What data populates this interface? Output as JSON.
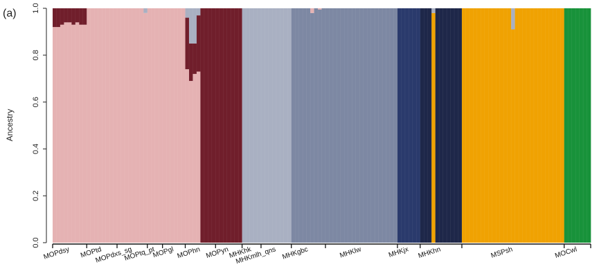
{
  "panel_label": "(a)",
  "colors": {
    "pink": "#e5b2b3",
    "maroon": "#701e2b",
    "lightgray": "#a9b0c2",
    "slate": "#7d88a3",
    "royal": "#2a3a6c",
    "navy": "#1e2749",
    "orange": "#f0a202",
    "green": "#18923a"
  },
  "chart_data": {
    "type": "bar",
    "stacked": true,
    "ylabel": "Ancestry",
    "ylim": [
      0,
      1
    ],
    "yticks": [
      "0.0",
      "0.2",
      "0.4",
      "0.6",
      "0.8",
      "1.0"
    ],
    "populations": [
      {
        "name": "MOPdsy",
        "n": 9,
        "base": "pink"
      },
      {
        "name": "MOPtd",
        "n": 8,
        "base": "pink"
      },
      {
        "name": "MOPdxs_sg",
        "n": 8,
        "base": "pink"
      },
      {
        "name": "MOPtq_pt",
        "n": 4,
        "base": "pink"
      },
      {
        "name": "MOPgl",
        "n": 6,
        "base": "pink"
      },
      {
        "name": "MOPhn",
        "n": 8,
        "base": "maroon"
      },
      {
        "name": "MOPyn",
        "n": 7,
        "base": "maroon"
      },
      {
        "name": "MHKhk",
        "n": 5,
        "base": "lightgray"
      },
      {
        "name": "MHKmlh_qns",
        "n": 8,
        "base": "lightgray"
      },
      {
        "name": "MHKgbc",
        "n": 9,
        "base": "slate"
      },
      {
        "name": "MHKlw",
        "n": 19,
        "base": "slate"
      },
      {
        "name": "MHKjx",
        "n": 6,
        "base": "royal"
      },
      {
        "name": "MHKhn",
        "n": 11,
        "base": "navy"
      },
      {
        "name": "MSPsh",
        "n": 27,
        "base": "orange"
      },
      {
        "name": "MOCwl",
        "n": 7,
        "base": "green"
      }
    ],
    "admixture": [
      {
        "index": 0,
        "components": [
          [
            "pink",
            0.92
          ],
          [
            "maroon",
            0.08
          ]
        ]
      },
      {
        "index": 1,
        "components": [
          [
            "pink",
            0.92
          ],
          [
            "maroon",
            0.08
          ]
        ]
      },
      {
        "index": 2,
        "components": [
          [
            "pink",
            0.93
          ],
          [
            "maroon",
            0.07
          ]
        ]
      },
      {
        "index": 3,
        "components": [
          [
            "pink",
            0.94
          ],
          [
            "maroon",
            0.06
          ]
        ]
      },
      {
        "index": 4,
        "components": [
          [
            "pink",
            0.94
          ],
          [
            "maroon",
            0.06
          ]
        ]
      },
      {
        "index": 5,
        "components": [
          [
            "pink",
            0.93
          ],
          [
            "maroon",
            0.07
          ]
        ]
      },
      {
        "index": 6,
        "components": [
          [
            "pink",
            0.94
          ],
          [
            "maroon",
            0.06
          ]
        ]
      },
      {
        "index": 7,
        "components": [
          [
            "pink",
            0.93
          ],
          [
            "maroon",
            0.07
          ]
        ]
      },
      {
        "index": 8,
        "components": [
          [
            "pink",
            0.93
          ],
          [
            "maroon",
            0.07
          ]
        ]
      },
      {
        "index": 24,
        "components": [
          [
            "pink",
            0.98
          ],
          [
            "lightgray",
            0.02
          ]
        ]
      },
      {
        "index": 35,
        "components": [
          [
            "pink",
            0.74
          ],
          [
            "maroon",
            0.22
          ],
          [
            "lightgray",
            0.04
          ]
        ]
      },
      {
        "index": 36,
        "components": [
          [
            "pink",
            0.69
          ],
          [
            "maroon",
            0.16
          ],
          [
            "lightgray",
            0.15
          ]
        ]
      },
      {
        "index": 37,
        "components": [
          [
            "pink",
            0.72
          ],
          [
            "maroon",
            0.13
          ],
          [
            "lightgray",
            0.15
          ]
        ]
      },
      {
        "index": 38,
        "components": [
          [
            "pink",
            0.73
          ],
          [
            "maroon",
            0.24
          ],
          [
            "lightgray",
            0.03
          ]
        ]
      },
      {
        "index": 68,
        "components": [
          [
            "slate",
            0.98
          ],
          [
            "pink",
            0.02
          ]
        ]
      },
      {
        "index": 70,
        "components": [
          [
            "slate",
            0.995
          ],
          [
            "pink",
            0.005
          ]
        ]
      },
      {
        "index": 100,
        "components": [
          [
            "orange",
            0.98
          ],
          [
            "lightgray",
            0.02
          ]
        ]
      },
      {
        "index": 121,
        "components": [
          [
            "orange",
            0.91
          ],
          [
            "lightgray",
            0.09
          ]
        ]
      }
    ]
  }
}
